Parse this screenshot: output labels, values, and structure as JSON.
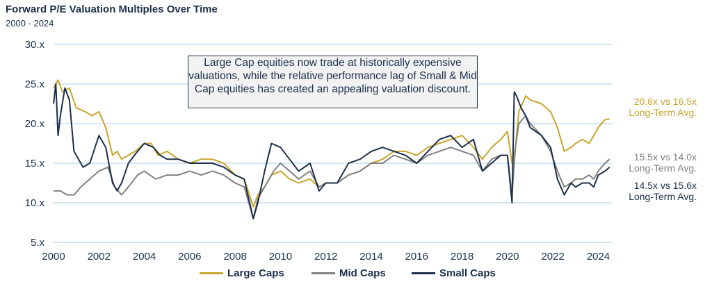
{
  "chart_data": {
    "type": "line",
    "title": "Forward P/E Valuation Multiples Over Time",
    "subtitle": "2000 - 2024",
    "xlabel": "",
    "ylabel": "",
    "xlim": [
      2000,
      2024.6
    ],
    "ylim": [
      5,
      30
    ],
    "x_ticks": [
      "2000",
      "2002",
      "2004",
      "2006",
      "2008",
      "2010",
      "2012",
      "2014",
      "2016",
      "2018",
      "2020",
      "2022",
      "2024"
    ],
    "y_ticks": [
      "5.x",
      "10.x",
      "15.x",
      "20.x",
      "25.x",
      "30.x"
    ],
    "grid": "horizontal",
    "legend_position": "bottom",
    "annotation": "Large Cap equities now trade at historically expensive valuations, while the relative performance lag of Small & Mid Cap equities has created an appealing valuation discount.",
    "end_labels": [
      {
        "line1": "20.6x vs 16.5x",
        "line2": "Long-Term Avg.",
        "color": "#c9a52c"
      },
      {
        "line1": "15.5x vs 14.0x",
        "line2": "Long-Term Avg.",
        "color": "#808080"
      },
      {
        "line1": "14.5x vs 15.6x",
        "line2": "Long-Term Avg.",
        "color": "#1b2f4a"
      }
    ],
    "series": [
      {
        "name": "Large Caps",
        "color": "#c9a52c",
        "x": [
          2000.0,
          2000.2,
          2000.4,
          2000.7,
          2001.0,
          2001.4,
          2001.7,
          2002.0,
          2002.3,
          2002.6,
          2002.8,
          2003.0,
          2003.3,
          2003.6,
          2004.0,
          2004.3,
          2004.6,
          2005.0,
          2005.5,
          2006.0,
          2006.5,
          2007.0,
          2007.5,
          2008.0,
          2008.4,
          2008.8,
          2009.0,
          2009.3,
          2009.6,
          2010.0,
          2010.4,
          2010.8,
          2011.3,
          2011.7,
          2012.0,
          2012.5,
          2013.0,
          2013.5,
          2014.0,
          2014.5,
          2015.0,
          2015.5,
          2016.0,
          2016.5,
          2017.0,
          2017.5,
          2018.0,
          2018.5,
          2018.9,
          2019.3,
          2019.7,
          2020.0,
          2020.2,
          2020.35,
          2020.5,
          2020.8,
          2021.0,
          2021.5,
          2021.9,
          2022.2,
          2022.5,
          2022.8,
          2023.0,
          2023.3,
          2023.6,
          2023.8,
          2024.0,
          2024.3,
          2024.5
        ],
        "values": [
          24.5,
          25.5,
          24,
          24.5,
          22,
          21.5,
          21,
          21.5,
          19.5,
          16,
          16.5,
          15.5,
          16,
          16.5,
          17.5,
          17.5,
          16,
          16.5,
          15.5,
          15,
          15.5,
          15.5,
          15,
          13.5,
          13,
          9.5,
          11,
          12,
          13.5,
          14,
          13,
          12.5,
          13,
          12,
          12.5,
          12.5,
          13.5,
          14,
          15,
          15.5,
          16.5,
          16.5,
          16,
          17,
          17.5,
          18,
          18.5,
          17,
          15.5,
          17,
          18,
          19,
          15,
          17,
          21.5,
          23.5,
          23,
          22.5,
          21.5,
          19.5,
          16.5,
          17,
          17.5,
          18,
          17.5,
          18.5,
          19.5,
          20.5,
          20.6
        ]
      },
      {
        "name": "Mid Caps",
        "color": "#808080",
        "x": [
          2000.0,
          2000.3,
          2000.6,
          2000.9,
          2001.2,
          2001.6,
          2002.0,
          2002.4,
          2002.7,
          2003.0,
          2003.3,
          2003.7,
          2004.0,
          2004.5,
          2005.0,
          2005.5,
          2006.0,
          2006.5,
          2007.0,
          2007.5,
          2008.0,
          2008.4,
          2008.8,
          2009.0,
          2009.3,
          2009.7,
          2010.0,
          2010.4,
          2010.8,
          2011.3,
          2011.7,
          2012.0,
          2012.5,
          2013.0,
          2013.5,
          2014.0,
          2014.5,
          2015.0,
          2015.5,
          2016.0,
          2016.5,
          2017.0,
          2017.5,
          2018.0,
          2018.5,
          2018.9,
          2019.3,
          2019.7,
          2020.0,
          2020.2,
          2020.35,
          2020.5,
          2020.8,
          2021.0,
          2021.5,
          2021.9,
          2022.2,
          2022.5,
          2022.8,
          2023.0,
          2023.3,
          2023.6,
          2023.8,
          2024.0,
          2024.3,
          2024.5
        ],
        "values": [
          11.5,
          11.5,
          11,
          11,
          12,
          13,
          14,
          14.5,
          12,
          11,
          12,
          13.5,
          14,
          13,
          13.5,
          13.5,
          14,
          13.5,
          14,
          13.5,
          12.5,
          12,
          8,
          10.5,
          12,
          14,
          15,
          14,
          13,
          14,
          12,
          12.5,
          12.5,
          13.5,
          14,
          15,
          15,
          16,
          15.5,
          15,
          16,
          16.5,
          17,
          16.5,
          16,
          14,
          15.5,
          16,
          16,
          11,
          17,
          20,
          21,
          20,
          18.5,
          16.5,
          14,
          12,
          12.5,
          13,
          13,
          13.5,
          13,
          14,
          15,
          15.5
        ]
      },
      {
        "name": "Small Caps",
        "color": "#1b2f4a",
        "x": [
          2000.0,
          2000.1,
          2000.2,
          2000.3,
          2000.5,
          2000.7,
          2000.9,
          2001.1,
          2001.3,
          2001.6,
          2002.0,
          2002.3,
          2002.6,
          2002.8,
          2003.0,
          2003.3,
          2003.7,
          2004.0,
          2004.4,
          2004.7,
          2005.0,
          2005.5,
          2006.0,
          2006.5,
          2007.0,
          2007.5,
          2008.0,
          2008.4,
          2008.8,
          2009.0,
          2009.3,
          2009.6,
          2010.0,
          2010.4,
          2010.8,
          2011.3,
          2011.7,
          2012.0,
          2012.5,
          2013.0,
          2013.5,
          2014.0,
          2014.5,
          2015.0,
          2015.5,
          2016.0,
          2016.5,
          2017.0,
          2017.5,
          2018.0,
          2018.5,
          2018.9,
          2019.3,
          2019.7,
          2020.0,
          2020.2,
          2020.3,
          2020.4,
          2020.6,
          2020.8,
          2021.0,
          2021.5,
          2021.9,
          2022.2,
          2022.5,
          2022.8,
          2023.0,
          2023.3,
          2023.6,
          2023.8,
          2024.0,
          2024.3,
          2024.5
        ],
        "values": [
          22.5,
          25,
          18.5,
          21,
          24.5,
          23,
          16.5,
          15.5,
          14.5,
          15,
          18.5,
          17,
          12.5,
          11.5,
          12.5,
          15,
          16.5,
          17.5,
          17,
          16,
          15.5,
          15.5,
          15,
          15,
          15,
          14.5,
          13.5,
          13,
          8,
          10,
          14,
          17.5,
          17,
          15.5,
          14,
          15,
          11.5,
          12.5,
          12.5,
          15,
          15.5,
          16.5,
          17,
          16.5,
          16,
          15,
          16.5,
          18,
          18.5,
          17,
          18,
          14,
          15,
          16,
          16,
          10,
          24,
          23.5,
          22,
          21,
          19.5,
          18.5,
          17,
          13,
          11,
          12.5,
          12,
          12.5,
          12.5,
          12,
          13.5,
          14,
          14.5
        ]
      }
    ]
  },
  "legend": {
    "items": [
      {
        "label": "Large Caps",
        "color": "#c9a52c"
      },
      {
        "label": "Mid Caps",
        "color": "#808080"
      },
      {
        "label": "Small Caps",
        "color": "#1b2f4a"
      }
    ]
  }
}
